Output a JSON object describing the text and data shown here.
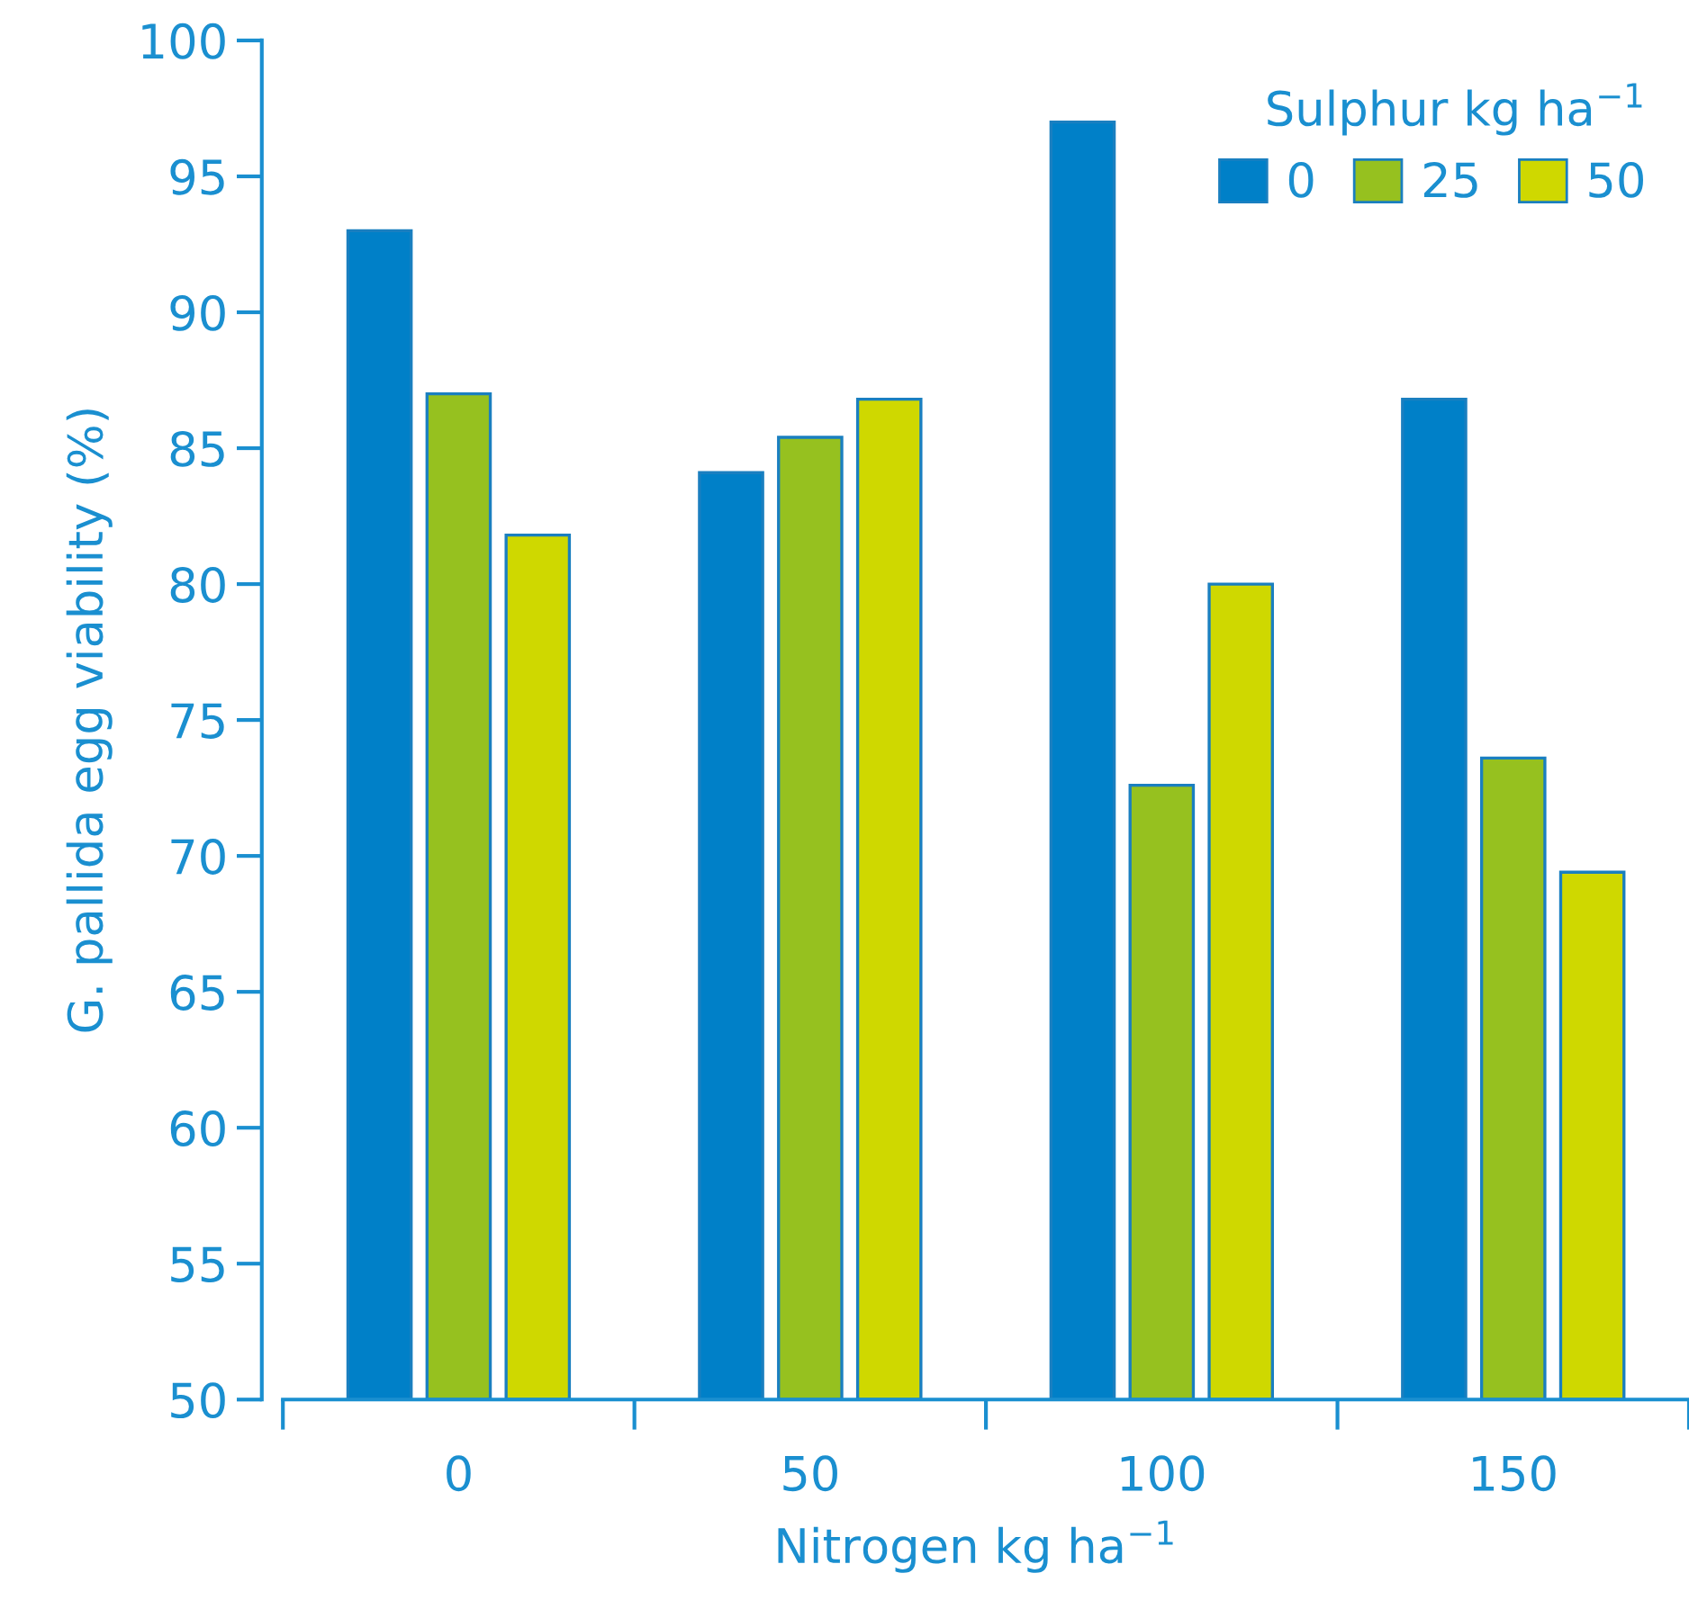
{
  "chart_data": {
    "type": "bar",
    "xlabel": "Nitrogen kg ha$^{−1}$",
    "ylabel": "G. pallida egg viability (%)",
    "legend_title": "Sulphur kg ha$^{−1}$",
    "categories": [
      "0",
      "50",
      "100",
      "150"
    ],
    "series": [
      {
        "name": "0",
        "color": "#0080c8",
        "values": [
          93.0,
          84.1,
          97.0,
          86.8
        ]
      },
      {
        "name": "25",
        "color": "#96c11f",
        "values": [
          87.0,
          85.4,
          72.6,
          73.6
        ]
      },
      {
        "name": "50",
        "color": "#cfd800",
        "values": [
          81.8,
          86.8,
          80.0,
          69.4
        ]
      }
    ],
    "ylim": [
      50,
      100
    ],
    "yticks": [
      50,
      55,
      60,
      65,
      70,
      75,
      80,
      85,
      90,
      95,
      100
    ],
    "grid": false,
    "legend": "top right"
  }
}
